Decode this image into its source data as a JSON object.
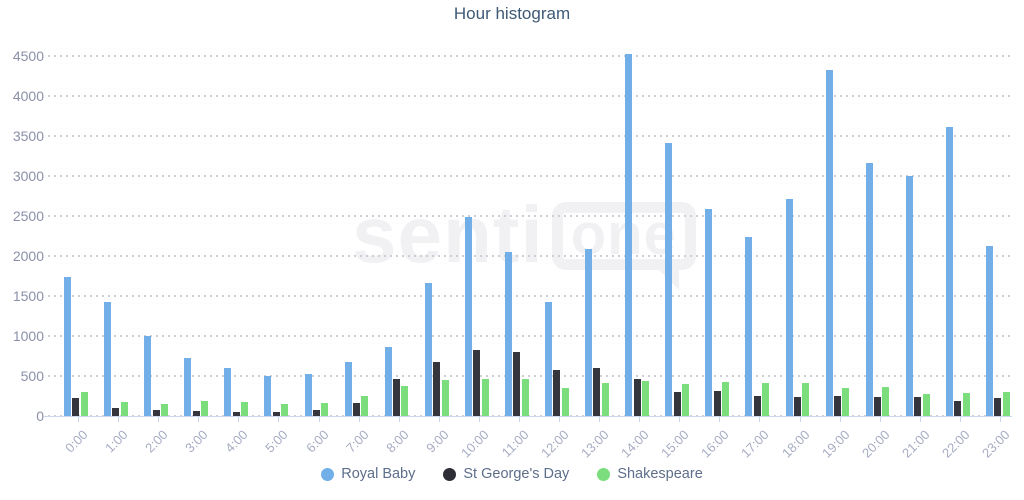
{
  "title": "Hour histogram",
  "watermark": {
    "prefix": "senti",
    "bubble": "one"
  },
  "chart_data": {
    "type": "bar",
    "title": "Hour histogram",
    "categories": [
      "0:00",
      "1:00",
      "2:00",
      "3:00",
      "4:00",
      "5:00",
      "6:00",
      "7:00",
      "8:00",
      "9:00",
      "10:00",
      "11:00",
      "12:00",
      "13:00",
      "14:00",
      "15:00",
      "16:00",
      "17:00",
      "18:00",
      "19:00",
      "20:00",
      "21:00",
      "22:00",
      "23:00"
    ],
    "series": [
      {
        "name": "Royal Baby",
        "color": "#72AEE8",
        "values": [
          1740,
          1430,
          1000,
          720,
          600,
          505,
          520,
          670,
          860,
          1665,
          2485,
          2055,
          1420,
          2085,
          4520,
          3410,
          2585,
          2235,
          2715,
          4325,
          3165,
          3000,
          3615,
          2130
        ]
      },
      {
        "name": "St George's Day",
        "color": "#35353D",
        "values": [
          220,
          100,
          75,
          60,
          55,
          45,
          70,
          165,
          460,
          680,
          825,
          805,
          575,
          595,
          460,
          305,
          315,
          250,
          240,
          245,
          240,
          235,
          185,
          220
        ]
      },
      {
        "name": "Shakespeare",
        "color": "#7CDD7C",
        "values": [
          295,
          175,
          150,
          185,
          170,
          145,
          165,
          255,
          375,
          450,
          465,
          460,
          355,
          415,
          435,
          405,
          430,
          410,
          415,
          350,
          360,
          280,
          290,
          295
        ]
      }
    ],
    "ylim": [
      0,
      4500
    ],
    "ytick_step": 500,
    "grid": "dotted-horizontal",
    "legend_position": "bottom"
  }
}
